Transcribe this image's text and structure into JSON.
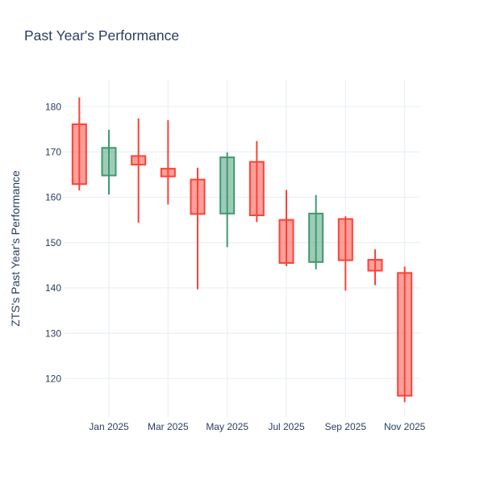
{
  "chart_data": {
    "type": "candlestick",
    "title": "Past Year's Performance",
    "ylabel": "ZTS's Past Year's Performance",
    "xlabel": "",
    "legend": "none",
    "grid": true,
    "categories": [
      "Dec 2024",
      "Jan 2025",
      "Feb 2025",
      "Mar 2025",
      "Apr 2025",
      "May 2025",
      "Jun 2025",
      "Jul 2025",
      "Aug 2025",
      "Sep 2025",
      "Oct 2025",
      "Nov 2025"
    ],
    "ohlc": [
      {
        "x": "Dec 2024",
        "open": 176.1,
        "high": 182.0,
        "low": 161.5,
        "close": 162.9,
        "direction": "decreasing"
      },
      {
        "x": "Jan 2025",
        "open": 164.8,
        "high": 174.9,
        "low": 160.6,
        "close": 170.9,
        "direction": "increasing"
      },
      {
        "x": "Feb 2025",
        "open": 169.1,
        "high": 177.4,
        "low": 154.4,
        "close": 167.2,
        "direction": "decreasing"
      },
      {
        "x": "Mar 2025",
        "open": 166.3,
        "high": 177.0,
        "low": 158.4,
        "close": 164.6,
        "direction": "decreasing"
      },
      {
        "x": "Apr 2025",
        "open": 163.9,
        "high": 166.5,
        "low": 139.7,
        "close": 156.3,
        "direction": "decreasing"
      },
      {
        "x": "May 2025",
        "open": 156.4,
        "high": 169.9,
        "low": 149.0,
        "close": 168.8,
        "direction": "increasing"
      },
      {
        "x": "Jun 2025",
        "open": 167.8,
        "high": 172.4,
        "low": 154.5,
        "close": 156.0,
        "direction": "decreasing"
      },
      {
        "x": "Jul 2025",
        "open": 155.0,
        "high": 161.6,
        "low": 144.8,
        "close": 145.5,
        "direction": "decreasing"
      },
      {
        "x": "Aug 2025",
        "open": 145.7,
        "high": 160.5,
        "low": 144.1,
        "close": 156.4,
        "direction": "increasing"
      },
      {
        "x": "Sep 2025",
        "open": 155.2,
        "high": 155.8,
        "low": 139.4,
        "close": 146.1,
        "direction": "decreasing"
      },
      {
        "x": "Oct 2025",
        "open": 146.2,
        "high": 148.5,
        "low": 140.6,
        "close": 143.8,
        "direction": "decreasing"
      },
      {
        "x": "Nov 2025",
        "open": 143.3,
        "high": 144.7,
        "low": 114.8,
        "close": 116.2,
        "direction": "decreasing"
      }
    ],
    "x_tick_labels": [
      "Jan 2025",
      "Mar 2025",
      "May 2025",
      "Jul 2025",
      "Sep 2025",
      "Nov 2025"
    ],
    "x_tick_indices": [
      1,
      3,
      5,
      7,
      9,
      11
    ],
    "y_ticks": [
      120,
      130,
      140,
      150,
      160,
      170,
      180
    ],
    "ylim": [
      111.5,
      185.9
    ],
    "colors": {
      "increasing": "#3D9970",
      "decreasing": "#FF4136",
      "increasing_fill": "rgba(61,153,112,0.5)",
      "decreasing_fill": "rgba(255,65,54,0.5)",
      "text": "#2a3f5f",
      "gridline": "#EBF0F8",
      "background": "#FFFFFF"
    }
  }
}
